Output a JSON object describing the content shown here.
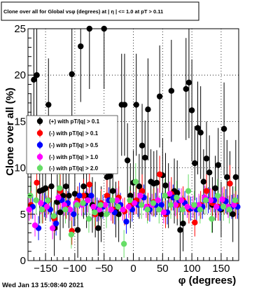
{
  "canvas": {
    "title": "Clone  over all for Global vsφ (degrees) at | η | <= 1.0 at pT > 0.11",
    "timestamp": "Wed Jan 13 15:08:40 2021"
  },
  "chart_data": {
    "type": "scatter",
    "title": "Clone  over all for Global vsφ (degrees) at | η | <= 1.0 at pT > 0.11",
    "xlabel": "φ (degrees)",
    "ylabel": "Clone  over all (%)",
    "xlim": [
      -180,
      180
    ],
    "ylim": [
      0,
      25
    ],
    "xticks": [
      -150,
      -100,
      -50,
      0,
      50,
      100,
      150
    ],
    "xtick_labels": [
      "−150",
      "−100",
      "−50",
      "0",
      "50",
      "100",
      "150"
    ],
    "yticks": [
      0,
      5,
      10,
      15,
      20,
      25
    ],
    "ytick_labels": [
      "0",
      "5",
      "10",
      "15",
      "20",
      "25"
    ],
    "grid": true,
    "legend_position": "left",
    "series": [
      {
        "name": "(+) with pT/|q| > 0.1",
        "color": "#000000",
        "x": [
          -175,
          -170,
          -165,
          -160,
          -155,
          -150,
          -145,
          -140,
          -135,
          -130,
          -125,
          -120,
          -115,
          -110,
          -105,
          -100,
          -95,
          -90,
          -85,
          -80,
          -75,
          -70,
          -65,
          -60,
          -55,
          -50,
          -45,
          -40,
          -35,
          -30,
          -25,
          -20,
          -15,
          -10,
          -5,
          0,
          5,
          10,
          15,
          20,
          25,
          30,
          35,
          40,
          45,
          50,
          55,
          60,
          65,
          70,
          75,
          80,
          85,
          90,
          95,
          100,
          105,
          110,
          115,
          120,
          125,
          130,
          135,
          140,
          145,
          150,
          155,
          160,
          165,
          170,
          175
        ],
        "y": [
          12.0,
          19.5,
          20.0,
          7.5,
          7.6,
          7.8,
          16.8,
          8.0,
          3.5,
          6.3,
          5.2,
          7.0,
          8.0,
          7.0,
          20.1,
          7.2,
          3.3,
          23.1,
          8.0,
          7.0,
          25.0,
          6.0,
          5.5,
          3.5,
          5.0,
          25.0,
          9.0,
          9.1,
          7.5,
          5.5,
          5.0,
          16.8,
          16.8,
          10.8,
          7.0,
          8.4,
          16.8,
          8.0,
          12.4,
          11.1,
          16.3,
          8.5,
          8.3,
          8.4,
          17.7,
          9.2,
          8.1,
          7.0,
          18.3,
          7.5,
          7.3,
          3.3,
          4.0,
          18.5,
          19.2,
          16.2,
          10.5,
          14.3,
          13.8,
          8.5,
          11.0,
          9.5,
          6.0,
          7.8,
          10.3,
          5.5,
          14.2,
          9.0,
          8.3,
          5.0,
          9.0
        ],
        "err": [
          6.0,
          6.0,
          6.0,
          3.5,
          3.5,
          3.5,
          5.0,
          3.5,
          3.0,
          3.0,
          3.0,
          3.5,
          3.5,
          3.5,
          6.0,
          3.5,
          3.0,
          6.0,
          3.5,
          3.5,
          6.5,
          3.0,
          3.0,
          3.0,
          3.0,
          6.5,
          4.0,
          4.0,
          3.5,
          3.0,
          3.0,
          5.5,
          5.5,
          4.0,
          3.5,
          3.5,
          5.5,
          3.5,
          4.5,
          4.0,
          5.5,
          3.5,
          3.5,
          3.5,
          5.5,
          4.0,
          3.5,
          3.5,
          5.5,
          3.5,
          3.5,
          3.0,
          3.0,
          5.5,
          6.0,
          5.5,
          4.0,
          5.0,
          5.0,
          3.5,
          4.0,
          4.0,
          3.0,
          3.5,
          4.0,
          3.0,
          5.0,
          4.0,
          3.5,
          3.0,
          4.0
        ]
      },
      {
        "name": "(-) with pT/|q| > 0.1",
        "color": "#ff0000",
        "x": [
          -175,
          -165,
          -155,
          -145,
          -135,
          -125,
          -115,
          -105,
          -95,
          -85,
          -75,
          -65,
          -55,
          -45,
          -35,
          -25,
          -15,
          -5,
          5,
          15,
          25,
          35,
          45,
          55,
          65,
          75,
          85,
          95,
          105,
          115,
          125,
          135,
          145,
          155,
          165,
          175
        ],
        "y": [
          6.0,
          8.4,
          5.5,
          6.5,
          4.5,
          7.5,
          6.0,
          3.2,
          6.5,
          7.0,
          8.2,
          5.0,
          6.2,
          7.0,
          5.5,
          6.8,
          5.3,
          6.0,
          6.5,
          7.5,
          5.8,
          6.3,
          9.3,
          5.0,
          7.2,
          6.0,
          6.5,
          5.5,
          4.1,
          6.0,
          7.5,
          6.2,
          5.8,
          6.5,
          8.3,
          6.0
        ],
        "err": [
          1.5,
          2.0,
          1.5,
          1.5,
          1.5,
          1.8,
          1.5,
          1.5,
          1.5,
          1.8,
          2.0,
          1.5,
          1.5,
          1.8,
          1.5,
          1.8,
          1.5,
          1.5,
          1.5,
          1.8,
          1.5,
          1.5,
          2.0,
          1.5,
          1.8,
          1.5,
          1.5,
          1.5,
          1.5,
          1.5,
          1.8,
          1.5,
          1.5,
          1.5,
          2.0,
          1.5
        ]
      },
      {
        "name": "(-) with pT/|q| > 0.5",
        "color": "#0000ff",
        "x": [
          -172,
          -162,
          -152,
          -142,
          -132,
          -122,
          -112,
          -102,
          -92,
          -82,
          -72,
          -62,
          -52,
          -42,
          -32,
          -22,
          -12,
          -2,
          8,
          18,
          28,
          38,
          48,
          58,
          68,
          78,
          88,
          98,
          108,
          118,
          128,
          138,
          148,
          158,
          168,
          178
        ],
        "y": [
          5.8,
          3.5,
          6.0,
          5.5,
          4.0,
          6.5,
          6.2,
          5.0,
          7.0,
          6.2,
          7.0,
          5.5,
          5.8,
          6.5,
          5.2,
          6.0,
          4.2,
          5.5,
          6.0,
          6.8,
          5.5,
          6.0,
          6.0,
          5.2,
          6.8,
          6.5,
          6.2,
          5.6,
          5.5,
          5.8,
          6.5,
          6.5,
          5.6,
          6.4,
          5.8,
          5.8
        ],
        "err": [
          1.3,
          1.3,
          1.3,
          1.3,
          1.3,
          1.4,
          1.3,
          1.3,
          1.4,
          1.3,
          1.4,
          1.3,
          1.3,
          1.4,
          1.3,
          1.3,
          1.3,
          1.3,
          1.3,
          1.4,
          1.3,
          1.3,
          1.3,
          1.3,
          1.4,
          1.3,
          1.3,
          1.3,
          1.3,
          1.3,
          1.4,
          1.3,
          1.3,
          1.3,
          1.3,
          1.3
        ]
      },
      {
        "name": "(-) with pT/|q| > 1.0",
        "color": "#ff00ff",
        "x": [
          -178,
          -168,
          -158,
          -148,
          -138,
          -128,
          -118,
          -108,
          -98,
          -88,
          -78,
          -68,
          -58,
          -48,
          -38,
          -28,
          -18,
          -8,
          2,
          12,
          22,
          32,
          42,
          52,
          62,
          72,
          82,
          92,
          102,
          112,
          122,
          132,
          142,
          152,
          162,
          172
        ],
        "y": [
          5.5,
          3.8,
          6.2,
          5.8,
          3.5,
          6.8,
          6.0,
          5.5,
          6.2,
          6.0,
          6.5,
          5.8,
          5.5,
          6.0,
          5.5,
          6.5,
          5.5,
          5.8,
          6.2,
          7.0,
          5.8,
          6.0,
          6.5,
          5.2,
          7.2,
          6.0,
          6.5,
          5.8,
          5.8,
          6.0,
          6.8,
          6.5,
          5.8,
          6.6,
          5.8,
          6.0
        ],
        "err": [
          1.2,
          1.2,
          1.2,
          1.2,
          1.2,
          1.3,
          1.2,
          1.2,
          1.2,
          1.2,
          1.3,
          1.2,
          1.2,
          1.2,
          1.2,
          1.3,
          1.2,
          1.2,
          1.2,
          1.3,
          1.2,
          1.2,
          1.3,
          1.2,
          1.3,
          1.2,
          1.3,
          1.2,
          1.2,
          1.2,
          1.3,
          1.3,
          1.2,
          1.3,
          1.2,
          1.2
        ]
      },
      {
        "name": "(-) with pT/|q| > 2.0",
        "color": "#66dd66",
        "x": [
          -176,
          -166,
          -156,
          -146,
          -136,
          -126,
          -116,
          -106,
          -96,
          -86,
          -76,
          -66,
          -56,
          -46,
          -36,
          -26,
          -16,
          -6,
          4,
          14,
          24,
          34,
          44,
          54,
          64,
          74,
          84,
          94,
          104,
          114,
          124,
          134,
          144,
          154,
          164,
          174
        ],
        "y": [
          7.0,
          6.5,
          5.5,
          6.5,
          4.8,
          7.8,
          5.5,
          2.8,
          6.0,
          6.2,
          4.5,
          5.2,
          6.0,
          5.0,
          6.5,
          5.8,
          1.8,
          6.5,
          8.5,
          6.0,
          5.5,
          6.2,
          5.5,
          7.0,
          6.0,
          6.8,
          5.5,
          7.5,
          6.0,
          5.5,
          6.5,
          4.5,
          7.0,
          5.8,
          5.5,
          6.5
        ],
        "err": [
          1.5,
          1.5,
          1.5,
          1.5,
          1.5,
          1.8,
          1.5,
          1.5,
          1.5,
          1.5,
          1.5,
          1.5,
          1.5,
          1.5,
          1.5,
          1.5,
          1.5,
          1.5,
          2.0,
          1.5,
          1.5,
          1.5,
          1.5,
          1.8,
          1.5,
          1.8,
          1.5,
          1.8,
          1.5,
          1.5,
          1.5,
          1.5,
          1.8,
          1.5,
          1.5,
          1.5
        ]
      }
    ]
  }
}
